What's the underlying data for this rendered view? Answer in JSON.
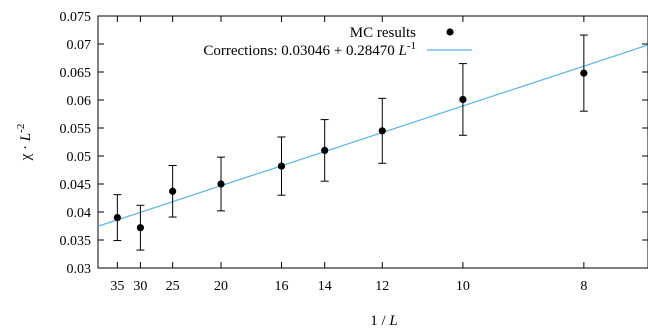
{
  "chart_data": {
    "type": "scatter",
    "xlabel": {
      "prefix": "1 / ",
      "var": "L"
    },
    "ylabel": {
      "text": "χ · ",
      "var": "L",
      "sup": "-2"
    },
    "ylim": [
      0.03,
      0.075
    ],
    "yticks": [
      "0.03",
      "0.035",
      "0.04",
      "0.045",
      "0.05",
      "0.055",
      "0.06",
      "0.065",
      "0.07",
      "0.075"
    ],
    "xaxis_note": "x positions are 1/L; tick labels show L",
    "xticks": [
      35,
      30,
      25,
      20,
      16,
      14,
      12,
      10,
      8
    ],
    "legend_position": "top-right",
    "series": [
      {
        "name": "MC results",
        "kind": "points-with-errorbars",
        "color": "#000000",
        "L": [
          35,
          30,
          25,
          20,
          16,
          14,
          12,
          10,
          8
        ],
        "y": [
          0.039,
          0.0372,
          0.0437,
          0.045,
          0.0482,
          0.051,
          0.0545,
          0.0601,
          0.0648
        ],
        "err": [
          0.0041,
          0.004,
          0.0046,
          0.0048,
          0.0052,
          0.0055,
          0.0058,
          0.0064,
          0.0068
        ]
      },
      {
        "name": "Corrections: 0.03046 + 0.28470 L",
        "name_prefix": "Corrections: 0.03046 + 0.28470 ",
        "name_var": "L",
        "name_sup": "-1",
        "kind": "line",
        "color": "#56b4e9",
        "intercept": 0.03046,
        "slope": 0.2847
      }
    ]
  }
}
